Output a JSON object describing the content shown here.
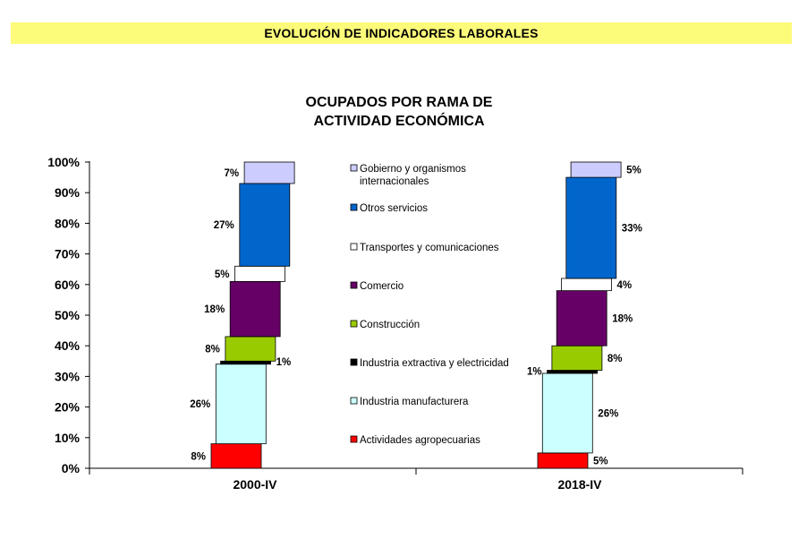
{
  "header": {
    "banner": "EVOLUCIÓN DE INDICADORES LABORALES"
  },
  "chart_data": {
    "type": "bar",
    "title": [
      "OCUPADOS POR RAMA DE",
      "ACTIVIDAD ECONÓMICA"
    ],
    "categories": [
      "2000-IV",
      "2018-IV"
    ],
    "ylim": [
      0,
      100
    ],
    "yticks": [
      "0%",
      "10%",
      "20%",
      "30%",
      "40%",
      "50%",
      "60%",
      "70%",
      "80%",
      "90%",
      "100%"
    ],
    "legend_position": "center",
    "series": [
      {
        "name": "Actividades agropecuarias",
        "color": "#ff0000",
        "values": [
          8,
          5
        ],
        "labels": [
          "8%",
          "5%"
        ]
      },
      {
        "name": "Industria manufacturera",
        "color": "#ccffff",
        "values": [
          26,
          26
        ],
        "labels": [
          "26%",
          "26%"
        ]
      },
      {
        "name": "Industria extractiva y electricidad",
        "color": "#000000",
        "values": [
          1,
          1
        ],
        "labels": [
          "1%",
          "1%"
        ]
      },
      {
        "name": "Construcción",
        "color": "#99cc00",
        "values": [
          8,
          8
        ],
        "labels": [
          "8%",
          "8%"
        ]
      },
      {
        "name": "Comercio",
        "color": "#660066",
        "values": [
          18,
          18
        ],
        "labels": [
          "18%",
          "18%"
        ]
      },
      {
        "name": "Transportes y comunicaciones",
        "color": "#ffffff",
        "values": [
          5,
          4
        ],
        "labels": [
          "5%",
          "4%"
        ]
      },
      {
        "name": "Otros servicios",
        "color": "#0066cc",
        "values": [
          27,
          33
        ],
        "labels": [
          "27%",
          "33%"
        ]
      },
      {
        "name": "Gobierno y organismos internacionales",
        "color": "#ccccff",
        "values": [
          7,
          5
        ],
        "labels": [
          "7%",
          "5%"
        ]
      }
    ],
    "legend_lines": [
      [
        "Gobierno y organismos",
        "internacionales"
      ],
      [
        "Otros servicios"
      ],
      [
        "Transportes y comunicaciones"
      ],
      [
        "Comercio"
      ],
      [
        "Construcción"
      ],
      [
        "Industria extractiva y electricidad"
      ],
      [
        "Industria manufacturera"
      ],
      [
        "Actividades agropecuarias"
      ]
    ]
  }
}
